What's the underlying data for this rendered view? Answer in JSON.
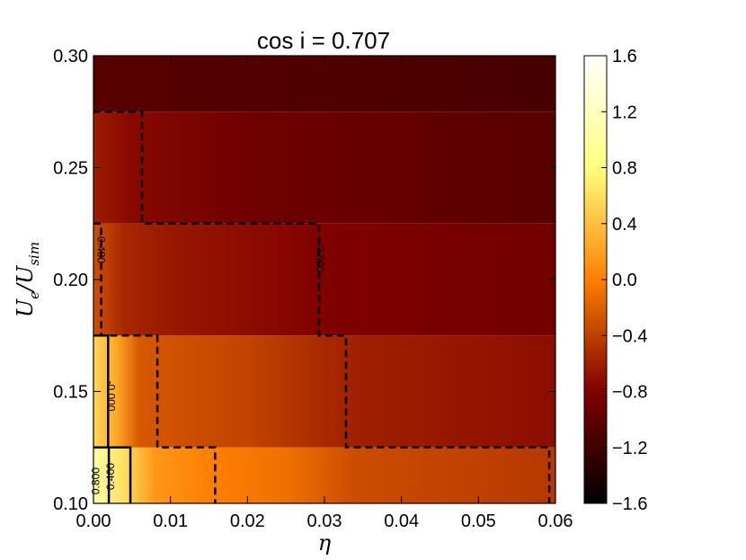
{
  "chart_data": {
    "type": "heatmap",
    "title": "cos i = 0.707",
    "xlabel": "η",
    "ylabel_main": "U",
    "ylabel_sub_e": "e",
    "ylabel_sep": "/U",
    "ylabel_sub_sim": "sim",
    "xlim": [
      0.0,
      0.06
    ],
    "ylim": [
      0.1,
      0.3
    ],
    "x_ticks": [
      "0.00",
      "0.01",
      "0.02",
      "0.03",
      "0.04",
      "0.05",
      "0.06"
    ],
    "y_ticks": [
      "0.10",
      "0.15",
      "0.20",
      "0.25",
      "0.30"
    ],
    "colorbar": {
      "range": [
        -1.6,
        1.6
      ],
      "ticks": [
        "1.6",
        "1.2",
        "0.8",
        "0.4",
        "0.0",
        "−0.4",
        "−0.8",
        "−1.2",
        "−1.6"
      ],
      "colormap": "afmhot"
    },
    "rows": [
      {
        "y_range": [
          0.1,
          0.125
        ],
        "profile": [
          [
            0.0,
            1.05
          ],
          [
            0.004,
            0.6
          ],
          [
            0.008,
            0.15
          ],
          [
            0.015,
            0.0
          ],
          [
            0.025,
            -0.1
          ],
          [
            0.034,
            -0.32
          ],
          [
            0.06,
            -0.45
          ]
        ]
      },
      {
        "y_range": [
          0.125,
          0.175
        ],
        "profile": [
          [
            0.0,
            0.55
          ],
          [
            0.003,
            0.25
          ],
          [
            0.006,
            -0.25
          ],
          [
            0.02,
            -0.38
          ],
          [
            0.034,
            -0.6
          ],
          [
            0.06,
            -0.72
          ]
        ]
      },
      {
        "y_range": [
          0.175,
          0.225
        ],
        "profile": [
          [
            0.0,
            -0.3
          ],
          [
            0.004,
            -0.55
          ],
          [
            0.01,
            -0.65
          ],
          [
            0.03,
            -0.8
          ],
          [
            0.06,
            -0.88
          ]
        ]
      },
      {
        "y_range": [
          0.225,
          0.275
        ],
        "profile": [
          [
            0.0,
            -0.62
          ],
          [
            0.005,
            -0.75
          ],
          [
            0.02,
            -0.9
          ],
          [
            0.06,
            -1.05
          ]
        ]
      },
      {
        "y_range": [
          0.275,
          0.3
        ],
        "profile": [
          [
            0.0,
            -1.05
          ],
          [
            0.06,
            -1.15
          ]
        ]
      }
    ],
    "contour_labels": [
      "0.800",
      "0.400",
      "-0.000",
      "-0.400",
      "-0.800"
    ],
    "contours": {
      "solid": [
        [
          [
            0.0,
            0.175
          ],
          [
            0.0019,
            0.175
          ],
          [
            0.0019,
            0.125
          ],
          [
            0.0048,
            0.125
          ],
          [
            0.0048,
            0.1
          ]
        ],
        [
          [
            0.0,
            0.125
          ],
          [
            0.002,
            0.125
          ],
          [
            0.002,
            0.1
          ]
        ]
      ],
      "dashed": [
        [
          [
            0.0,
            0.275
          ],
          [
            0.0063,
            0.275
          ],
          [
            0.0063,
            0.225
          ],
          [
            0.0293,
            0.225
          ],
          [
            0.0293,
            0.175
          ],
          [
            0.0328,
            0.175
          ],
          [
            0.0328,
            0.125
          ],
          [
            0.0592,
            0.125
          ],
          [
            0.0592,
            0.1
          ]
        ],
        [
          [
            0.0,
            0.225
          ],
          [
            0.001,
            0.225
          ],
          [
            0.001,
            0.175
          ],
          [
            0.0083,
            0.175
          ],
          [
            0.0083,
            0.125
          ],
          [
            0.0158,
            0.125
          ],
          [
            0.0158,
            0.1
          ]
        ]
      ]
    }
  }
}
